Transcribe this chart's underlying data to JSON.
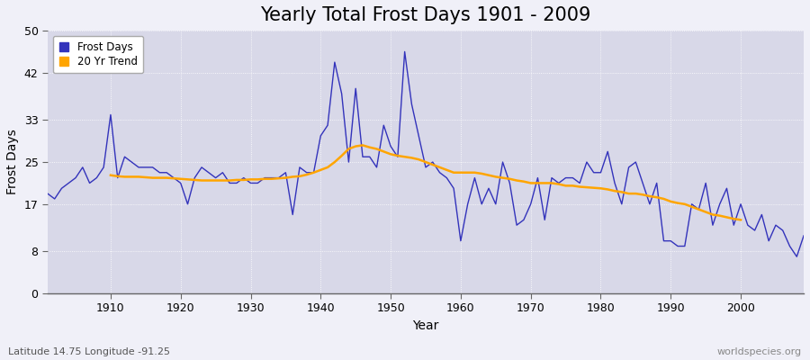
{
  "title": "Yearly Total Frost Days 1901 - 2009",
  "xlabel": "Year",
  "ylabel": "Frost Days",
  "subtitle": "Latitude 14.75 Longitude -91.25",
  "watermark": "worldspecies.org",
  "ylim": [
    0,
    50
  ],
  "yticks": [
    0,
    8,
    17,
    25,
    33,
    42,
    50
  ],
  "xticks": [
    1910,
    1920,
    1930,
    1940,
    1950,
    1960,
    1970,
    1980,
    1990,
    2000
  ],
  "xlim": [
    1901,
    2009
  ],
  "years": [
    1901,
    1902,
    1903,
    1904,
    1905,
    1906,
    1907,
    1908,
    1909,
    1910,
    1911,
    1912,
    1913,
    1914,
    1915,
    1916,
    1917,
    1918,
    1919,
    1920,
    1921,
    1922,
    1923,
    1924,
    1925,
    1926,
    1927,
    1928,
    1929,
    1930,
    1931,
    1932,
    1933,
    1934,
    1935,
    1936,
    1937,
    1938,
    1939,
    1940,
    1941,
    1942,
    1943,
    1944,
    1945,
    1946,
    1947,
    1948,
    1949,
    1950,
    1951,
    1952,
    1953,
    1954,
    1955,
    1956,
    1957,
    1958,
    1959,
    1960,
    1961,
    1962,
    1963,
    1964,
    1965,
    1966,
    1967,
    1968,
    1969,
    1970,
    1971,
    1972,
    1973,
    1974,
    1975,
    1976,
    1977,
    1978,
    1979,
    1980,
    1981,
    1982,
    1983,
    1984,
    1985,
    1986,
    1987,
    1988,
    1989,
    1990,
    1991,
    1992,
    1993,
    1994,
    1995,
    1996,
    1997,
    1998,
    1999,
    2000,
    2001,
    2002,
    2003,
    2004,
    2005,
    2006,
    2007,
    2008,
    2009
  ],
  "frost_days": [
    19,
    18,
    20,
    21,
    22,
    24,
    21,
    22,
    24,
    34,
    22,
    26,
    25,
    24,
    24,
    24,
    23,
    23,
    22,
    21,
    17,
    22,
    24,
    23,
    22,
    23,
    21,
    21,
    22,
    21,
    21,
    22,
    22,
    22,
    23,
    15,
    24,
    23,
    23,
    30,
    32,
    44,
    38,
    25,
    39,
    26,
    26,
    24,
    32,
    28,
    26,
    46,
    36,
    30,
    24,
    25,
    23,
    22,
    20,
    10,
    17,
    22,
    17,
    20,
    17,
    25,
    21,
    13,
    14,
    17,
    22,
    14,
    22,
    21,
    22,
    22,
    21,
    25,
    23,
    23,
    27,
    21,
    17,
    24,
    25,
    21,
    17,
    21,
    10,
    10,
    9,
    9,
    17,
    16,
    21,
    13,
    17,
    20,
    13,
    17,
    13,
    12,
    15,
    10,
    13,
    12,
    9,
    7,
    11
  ],
  "trend_years": [
    1910,
    1911,
    1912,
    1913,
    1914,
    1915,
    1916,
    1917,
    1918,
    1919,
    1920,
    1921,
    1922,
    1923,
    1924,
    1925,
    1926,
    1927,
    1928,
    1929,
    1930,
    1931,
    1932,
    1933,
    1934,
    1935,
    1936,
    1937,
    1938,
    1939,
    1940,
    1941,
    1942,
    1943,
    1944,
    1945,
    1946,
    1947,
    1948,
    1949,
    1950,
    1951,
    1952,
    1953,
    1954,
    1955,
    1956,
    1957,
    1958,
    1959,
    1960,
    1961,
    1962,
    1963,
    1964,
    1965,
    1966,
    1967,
    1968,
    1969,
    1970,
    1971,
    1972,
    1973,
    1974,
    1975,
    1976,
    1977,
    1978,
    1979,
    1980,
    1981,
    1982,
    1983,
    1984,
    1985,
    1986,
    1987,
    1988,
    1989,
    1990,
    1991,
    1992,
    1993,
    1994,
    1995,
    1996,
    1997,
    1998,
    1999,
    2000
  ],
  "trend_values": [
    22.5,
    22.3,
    22.2,
    22.2,
    22.2,
    22.1,
    22.0,
    22.0,
    22.0,
    21.9,
    21.8,
    21.7,
    21.6,
    21.5,
    21.5,
    21.5,
    21.5,
    21.5,
    21.6,
    21.6,
    21.7,
    21.7,
    21.8,
    21.8,
    21.9,
    22.0,
    22.2,
    22.3,
    22.6,
    23.0,
    23.5,
    24.0,
    25.0,
    26.2,
    27.5,
    28.0,
    28.2,
    27.8,
    27.5,
    27.0,
    26.5,
    26.2,
    26.0,
    25.8,
    25.5,
    25.0,
    24.5,
    24.0,
    23.5,
    23.0,
    23.0,
    23.0,
    23.0,
    22.8,
    22.5,
    22.2,
    22.0,
    21.8,
    21.5,
    21.3,
    21.0,
    21.0,
    21.0,
    21.0,
    20.8,
    20.5,
    20.5,
    20.3,
    20.2,
    20.1,
    20.0,
    19.8,
    19.5,
    19.3,
    19.0,
    19.0,
    18.8,
    18.5,
    18.3,
    18.0,
    17.5,
    17.2,
    17.0,
    16.5,
    16.0,
    15.5,
    15.0,
    14.8,
    14.5,
    14.2,
    14.0
  ],
  "line_color": "#3333bb",
  "trend_color": "#FFA500",
  "plot_bg_color": "#d8d8e8",
  "fig_bg_color": "#f0f0f8",
  "grid_color": "#ffffff",
  "title_fontsize": 15,
  "label_fontsize": 10,
  "tick_fontsize": 9
}
